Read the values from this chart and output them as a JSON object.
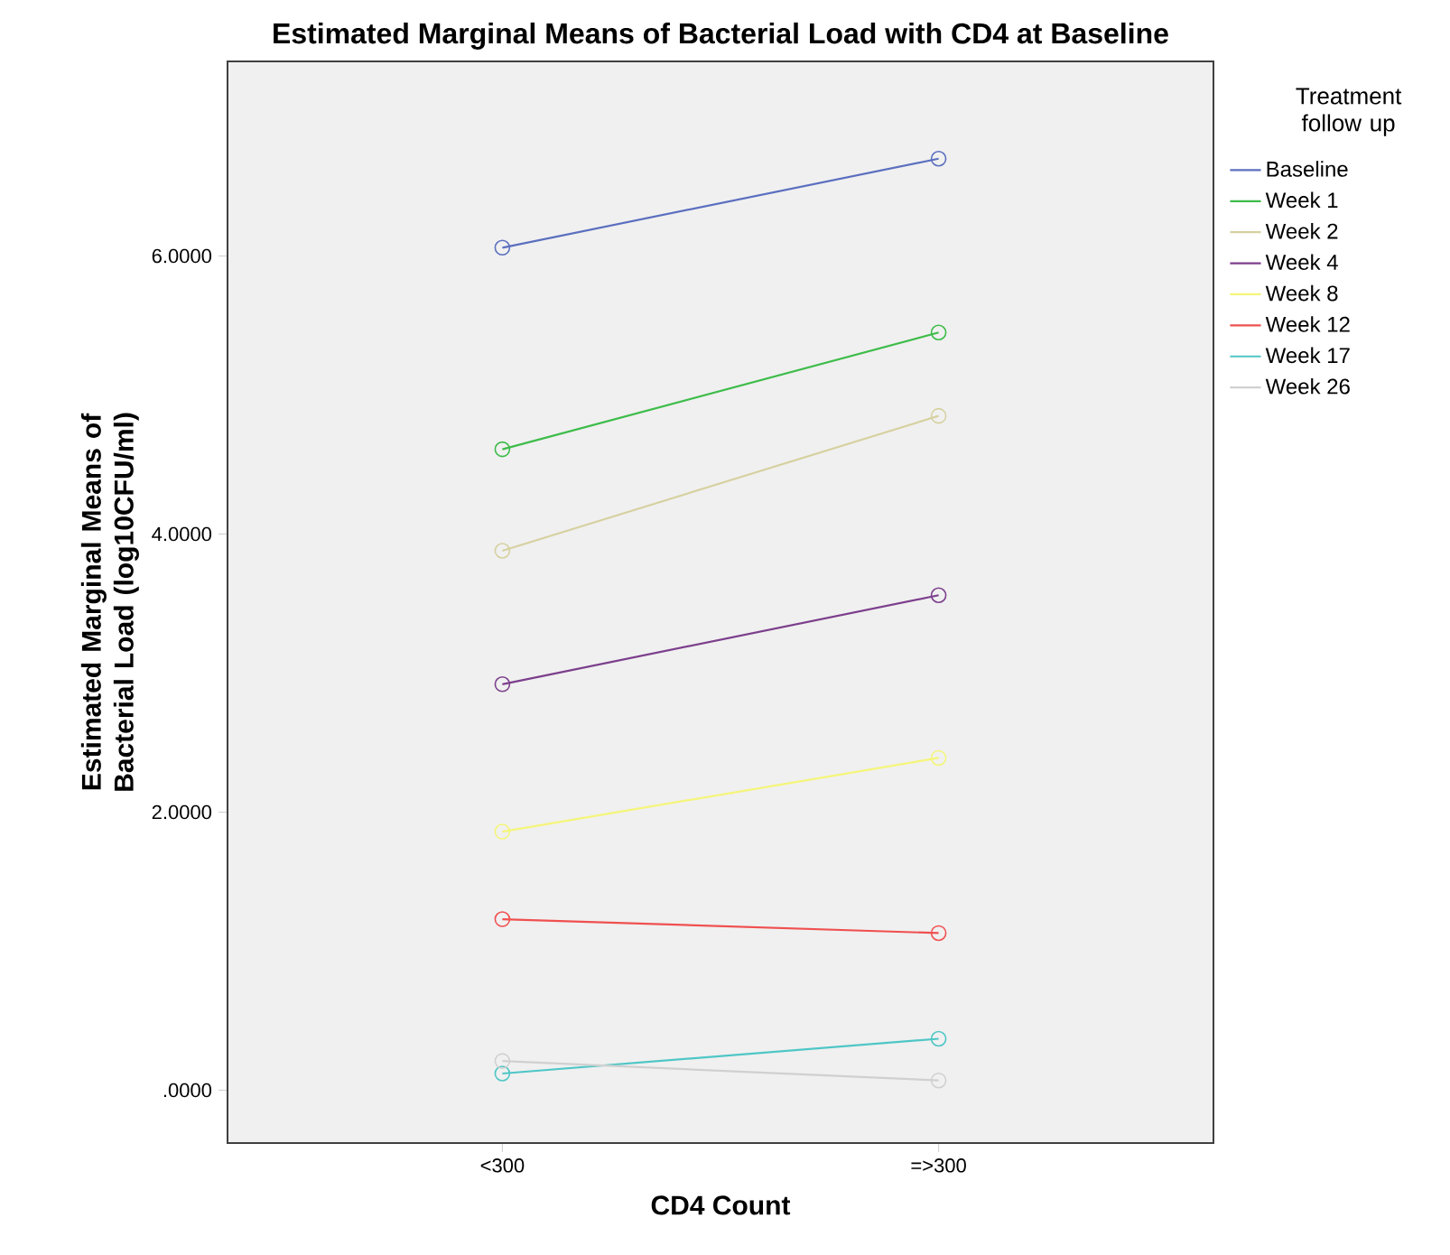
{
  "chart_data": {
    "type": "line",
    "title": "Estimated Marginal Means of Bacterial Load with CD4 at Baseline",
    "xlabel": "CD4 Count",
    "ylabel": "Estimated Marginal Means of Bacterial Load (log10CFU/ml)",
    "legend_title": "Treatment follow up",
    "categories": [
      "<300",
      "=>300"
    ],
    "ylim": [
      -0.38,
      7.4
    ],
    "yticks": [
      {
        "value": 0,
        "label": ".0000"
      },
      {
        "value": 2,
        "label": "2.0000"
      },
      {
        "value": 4,
        "label": "4.0000"
      },
      {
        "value": 6,
        "label": "6.0000"
      }
    ],
    "marker": "circle",
    "legend": "right",
    "grid": false,
    "series": [
      {
        "name": "Baseline",
        "color": "#5b6fbf",
        "values": [
          6.06,
          6.7
        ]
      },
      {
        "name": "Week 1",
        "color": "#3ebc4a",
        "values": [
          4.61,
          5.45
        ]
      },
      {
        "name": "Week 2",
        "color": "#d6d1a0",
        "values": [
          3.88,
          4.85
        ]
      },
      {
        "name": "Week 4",
        "color": "#7c3f8c",
        "values": [
          2.92,
          3.56
        ]
      },
      {
        "name": "Week 8",
        "color": "#f5f57a",
        "values": [
          1.86,
          2.39
        ]
      },
      {
        "name": "Week 12",
        "color": "#f05050",
        "values": [
          1.23,
          1.13
        ]
      },
      {
        "name": "Week 17",
        "color": "#4fc6c6",
        "values": [
          0.12,
          0.37
        ]
      },
      {
        "name": "Week 26",
        "color": "#d0d0d0",
        "values": [
          0.21,
          0.07
        ]
      }
    ]
  }
}
